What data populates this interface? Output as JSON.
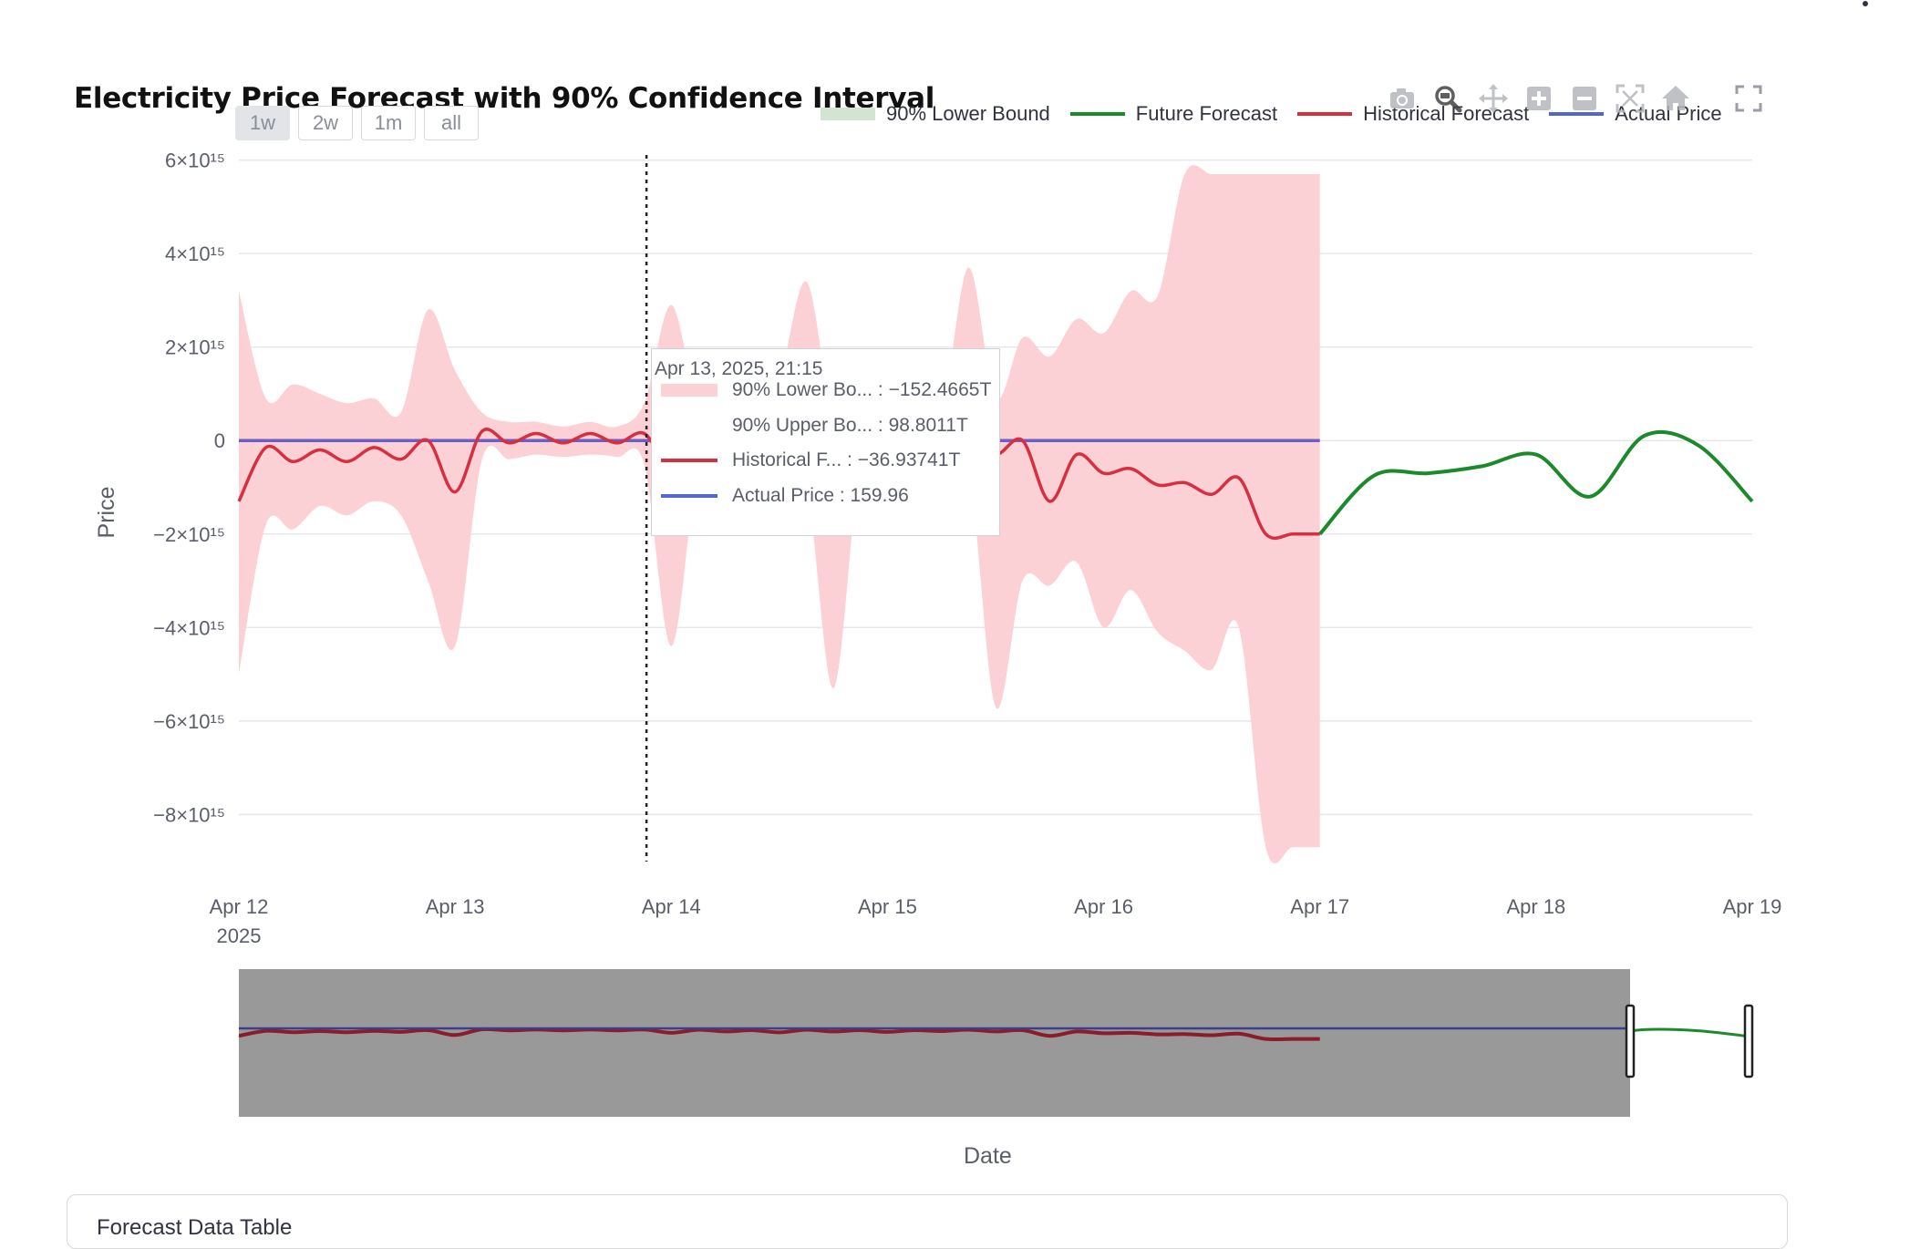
{
  "title": "Electricity Price Forecast with 90% Confidence Interval",
  "range_selector": [
    "1w",
    "2w",
    "1m",
    "all"
  ],
  "range_selector_active": "1w",
  "legend": [
    {
      "name": "90% Lower Bound",
      "swatch": "band",
      "color": "#d3e5d2"
    },
    {
      "name": "Future Forecast",
      "swatch": "line",
      "color": "#1a8a2a"
    },
    {
      "name": "Historical Forecast",
      "swatch": "line",
      "color": "#d62f40"
    },
    {
      "name": "Actual Price",
      "swatch": "line",
      "color": "#5166d6"
    }
  ],
  "modebar_icons": [
    "camera-icon",
    "zoom-icon",
    "pan-icon",
    "zoom-in-icon",
    "zoom-out-icon",
    "autoscale-icon",
    "reset-axes-icon"
  ],
  "tooltip": {
    "header": "Apr 13, 2025, 21:15",
    "rows": [
      {
        "text": "90% Lower Bo... : −152.4665T",
        "swatch": "band",
        "color": "#fbd1d6"
      },
      {
        "text": "90% Upper Bo... : 98.8011T",
        "swatch": "none",
        "color": ""
      },
      {
        "text": "Historical F... : −36.93741T",
        "swatch": "line",
        "color": "#d62f40"
      },
      {
        "text": "Actual Price : 159.96",
        "swatch": "line",
        "color": "#5166d6"
      }
    ]
  },
  "x_axis_title": "Date",
  "table_expander_label": "Forecast Data Table",
  "colors": {
    "band": "#fbd1d6",
    "historical": "#d62f40",
    "future": "#1a8a2a",
    "actual": "#6a5fc8",
    "grid": "#e8e8ec",
    "rangeslider_mask": "#999999",
    "rangeslider_dark_line": "#8b1c2b"
  },
  "chart_data": {
    "type": "line",
    "ylabel": "Price",
    "xlabel": "Date",
    "y_ticks": [
      "6×10¹⁵",
      "4×10¹⁵",
      "2×10¹⁵",
      "0",
      "−2×10¹⁵",
      "−4×10¹⁵",
      "−6×10¹⁵",
      "−8×10¹⁵"
    ],
    "y_tick_values": [
      6,
      4,
      2,
      0,
      -2,
      -4,
      -6,
      -8
    ],
    "y_unit_note": "y values in units of 10^15",
    "ylim": [
      -9.3,
      6.5
    ],
    "x_ticks": [
      "Apr 12",
      "Apr 13",
      "Apr 14",
      "Apr 15",
      "Apr 16",
      "Apr 17",
      "Apr 18",
      "Apr 19"
    ],
    "x_tick_sublabel": "2025",
    "xlim": [
      "2025-04-12",
      "2025-04-19"
    ],
    "hover_line_x": "2025-04-13 21:15",
    "grid": true,
    "legend_position": "top-right",
    "series": [
      {
        "name": "Historical Forecast",
        "x": [
          "2025-04-12 00:00",
          "2025-04-12 03:00",
          "2025-04-12 06:00",
          "2025-04-12 09:00",
          "2025-04-12 12:00",
          "2025-04-12 15:00",
          "2025-04-12 18:00",
          "2025-04-12 21:00",
          "2025-04-13 00:00",
          "2025-04-13 03:00",
          "2025-04-13 06:00",
          "2025-04-13 09:00",
          "2025-04-13 12:00",
          "2025-04-13 15:00",
          "2025-04-13 18:00",
          "2025-04-13 21:00",
          "2025-04-14 00:00",
          "2025-04-14 03:00",
          "2025-04-14 06:00",
          "2025-04-14 09:00",
          "2025-04-14 12:00",
          "2025-04-14 15:00",
          "2025-04-14 18:00",
          "2025-04-14 21:00",
          "2025-04-15 00:00",
          "2025-04-15 03:00",
          "2025-04-15 06:00",
          "2025-04-15 09:00",
          "2025-04-15 12:00",
          "2025-04-15 15:00",
          "2025-04-15 18:00",
          "2025-04-15 21:00",
          "2025-04-16 00:00",
          "2025-04-16 03:00",
          "2025-04-16 06:00",
          "2025-04-16 09:00",
          "2025-04-16 12:00",
          "2025-04-16 15:00",
          "2025-04-16 18:00",
          "2025-04-16 21:00",
          "2025-04-17 00:00"
        ],
        "y": [
          -1.3,
          -0.15,
          -0.45,
          -0.2,
          -0.45,
          -0.15,
          -0.4,
          0.0,
          -1.1,
          0.2,
          -0.05,
          0.15,
          -0.05,
          0.15,
          -0.05,
          0.15,
          -0.6,
          0.1,
          -0.3,
          0.0,
          -0.5,
          0.1,
          -0.3,
          0.0,
          -0.4,
          0.0,
          -0.2,
          0.1,
          -0.3,
          0.0,
          -1.3,
          -0.3,
          -0.7,
          -0.6,
          -0.95,
          -0.9,
          -1.15,
          -0.8,
          -2.0,
          -2.0,
          -2.0
        ],
        "y_lower": [
          -5.0,
          -1.8,
          -1.9,
          -1.4,
          -1.6,
          -1.3,
          -1.6,
          -3.0,
          -4.4,
          -0.4,
          -0.4,
          -0.3,
          -0.35,
          -0.3,
          -0.35,
          -0.5,
          -4.4,
          -0.6,
          -0.9,
          -0.5,
          -1.4,
          -1.0,
          -5.3,
          -0.6,
          -1.2,
          -0.5,
          -0.8,
          -0.6,
          -5.7,
          -3.0,
          -3.1,
          -2.6,
          -4.0,
          -3.2,
          -4.1,
          -4.5,
          -4.9,
          -4.0,
          -8.7,
          -8.7,
          -8.7
        ],
        "y_upper": [
          3.2,
          0.9,
          1.2,
          1.0,
          0.8,
          0.9,
          0.6,
          2.8,
          1.5,
          0.6,
          0.4,
          0.4,
          0.3,
          0.4,
          0.3,
          0.8,
          2.9,
          0.7,
          0.6,
          0.5,
          1.3,
          3.4,
          0.5,
          0.8,
          0.6,
          1.0,
          0.6,
          3.7,
          0.9,
          2.2,
          1.8,
          2.6,
          2.3,
          3.2,
          3.1,
          5.7,
          5.7,
          5.7,
          5.7,
          5.7,
          5.7
        ]
      },
      {
        "name": "Future Forecast",
        "x": [
          "2025-04-17 00:00",
          "2025-04-17 06:00",
          "2025-04-17 12:00",
          "2025-04-17 18:00",
          "2025-04-18 00:00",
          "2025-04-18 06:00",
          "2025-04-18 12:00",
          "2025-04-18 18:00",
          "2025-04-19 00:00"
        ],
        "y": [
          -2.0,
          -0.75,
          -0.7,
          -0.55,
          -0.3,
          -1.2,
          0.1,
          -0.1,
          -1.3
        ]
      },
      {
        "name": "Actual Price",
        "x": [
          "2025-04-12 00:00",
          "2025-04-17 00:00"
        ],
        "y": [
          0.0,
          0.0
        ]
      }
    ]
  }
}
